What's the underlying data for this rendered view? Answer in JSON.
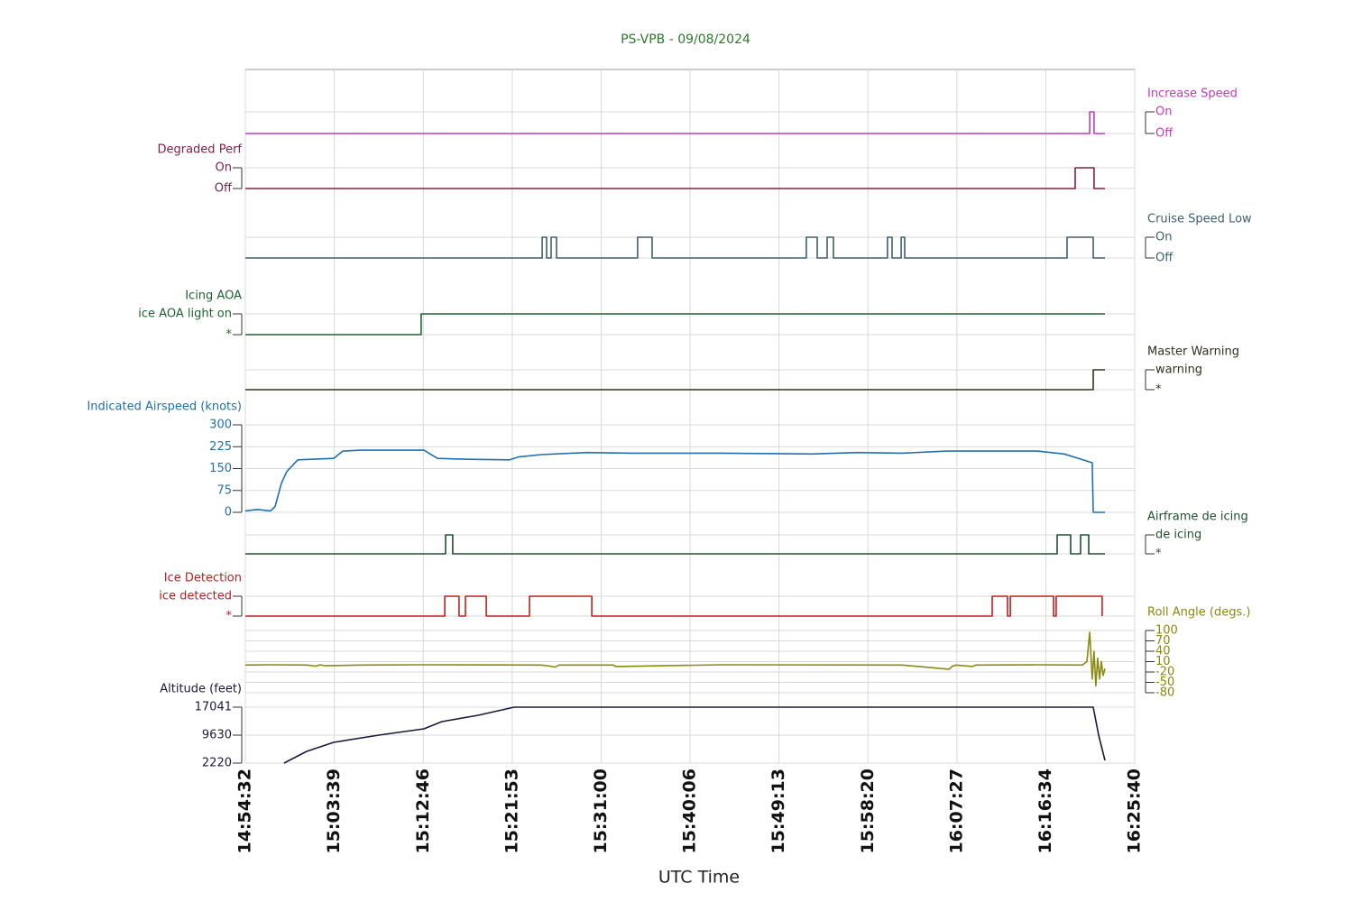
{
  "chart_data": {
    "type": "line",
    "title": "PS-VPB - 09/08/2024",
    "xlabel": "UTC Time",
    "xlim": [
      53672,
      59140
    ],
    "xticks": [
      {
        "value": 53672,
        "label": "14:54:32"
      },
      {
        "value": 54219,
        "label": "15:03:39"
      },
      {
        "value": 54766,
        "label": "15:12:46"
      },
      {
        "value": 55313,
        "label": "15:21:53"
      },
      {
        "value": 55860,
        "label": "15:31:00"
      },
      {
        "value": 56406,
        "label": "15:40:06"
      },
      {
        "value": 56953,
        "label": "15:49:13"
      },
      {
        "value": 57500,
        "label": "15:58:20"
      },
      {
        "value": 58047,
        "label": "16:07:27"
      },
      {
        "value": 58594,
        "label": "16:16:34"
      },
      {
        "value": 59140,
        "label": "16:25:40"
      }
    ],
    "grid": true,
    "series": [
      {
        "name": "Increase Speed",
        "color": "#c03cc0",
        "axis_side": "right",
        "ylim": [
          0,
          1
        ],
        "yticks": [
          {
            "value": 0,
            "label": "Off"
          },
          {
            "value": 1,
            "label": "On"
          }
        ],
        "x": [
          53672,
          58863,
          58863,
          58890,
          58890,
          58957
        ],
        "values": [
          0,
          0,
          1,
          1,
          0,
          0
        ]
      },
      {
        "name": "Degraded Perf",
        "color": "#802040",
        "axis_side": "left",
        "ylim": [
          0,
          1
        ],
        "yticks": [
          {
            "value": 0,
            "label": "Off"
          },
          {
            "value": 1,
            "label": "On"
          }
        ],
        "x": [
          53672,
          58774,
          58774,
          58890,
          58890,
          58957
        ],
        "values": [
          0,
          0,
          1,
          1,
          0,
          0
        ]
      },
      {
        "name": "Cruise Speed Low",
        "color": "#3e5f6e",
        "axis_side": "right",
        "ylim": [
          0,
          1
        ],
        "yticks": [
          {
            "value": 0,
            "label": "Off"
          },
          {
            "value": 1,
            "label": "On"
          }
        ],
        "x": [
          53672,
          55497,
          55497,
          55524,
          55524,
          55552,
          55552,
          55585,
          55585,
          56084,
          56084,
          56173,
          56173,
          57121,
          57121,
          57188,
          57188,
          57249,
          57249,
          57288,
          57288,
          57620,
          57620,
          57648,
          57648,
          57704,
          57704,
          57726,
          57726,
          58724,
          58724,
          58885,
          58885,
          58957
        ],
        "values": [
          0,
          0,
          1,
          1,
          0,
          0,
          1,
          1,
          0,
          0,
          1,
          1,
          0,
          0,
          1,
          1,
          0,
          0,
          1,
          1,
          0,
          0,
          1,
          1,
          0,
          0,
          1,
          1,
          0,
          0,
          1,
          1,
          0,
          0
        ]
      },
      {
        "name": "Icing AOA",
        "color": "#206030",
        "axis_side": "left",
        "ylim": [
          0,
          1
        ],
        "yticks": [
          {
            "value": 0,
            "label": "*"
          },
          {
            "value": 1,
            "label": "ice AOA light on"
          }
        ],
        "x": [
          53672,
          54753,
          54753,
          58957
        ],
        "values": [
          0,
          0,
          1,
          1
        ]
      },
      {
        "name": "Master Warning",
        "color": "#303020",
        "axis_side": "right",
        "ylim": [
          0,
          1
        ],
        "yticks": [
          {
            "value": 0,
            "label": "*"
          },
          {
            "value": 1,
            "label": "warning"
          }
        ],
        "x": [
          53672,
          58885,
          58885,
          58957
        ],
        "values": [
          0,
          0,
          1,
          1
        ]
      },
      {
        "name": "Indicated Airspeed (knots)",
        "color": "#2070b0",
        "axis_side": "left",
        "ylim": [
          0,
          300
        ],
        "yticks": [
          0,
          75,
          150,
          225,
          300
        ],
        "x": [
          53672,
          53744,
          53827,
          53855,
          53894,
          53927,
          53994,
          54215,
          54271,
          54382,
          54770,
          54853,
          55047,
          55297,
          55352,
          55491,
          55768,
          56045,
          56600,
          57155,
          57432,
          57709,
          57986,
          58264,
          58541,
          58707,
          58879,
          58885,
          58957
        ],
        "values": [
          5,
          10,
          5,
          20,
          100,
          140,
          180,
          185,
          210,
          213,
          213,
          185,
          182,
          180,
          190,
          198,
          205,
          203,
          203,
          200,
          205,
          203,
          210,
          210,
          210,
          200,
          170,
          0,
          0
        ]
      },
      {
        "name": "Airframe de icing",
        "color": "#205030",
        "axis_side": "right",
        "ylim": [
          0,
          1
        ],
        "yticks": [
          {
            "value": 0,
            "label": "*"
          },
          {
            "value": 1,
            "label": "de icing"
          }
        ],
        "x": [
          53672,
          54903,
          54903,
          54947,
          54947,
          58663,
          58663,
          58746,
          58746,
          58807,
          58807,
          58857,
          58857,
          58957
        ],
        "values": [
          0,
          0,
          1,
          1,
          0,
          0,
          1,
          1,
          0,
          0,
          1,
          1,
          0,
          0
        ]
      },
      {
        "name": "Ice Detection",
        "color": "#c02020",
        "axis_side": "left",
        "ylim": [
          0,
          1
        ],
        "yticks": [
          {
            "value": 0,
            "label": "*"
          },
          {
            "value": 1,
            "label": "ice detected"
          }
        ],
        "x": [
          53672,
          54898,
          54898,
          54986,
          54986,
          55025,
          55025,
          55153,
          55153,
          55419,
          55419,
          55802,
          55802,
          58264,
          58264,
          58358,
          58358,
          58375,
          58375,
          58641,
          58641,
          58657,
          58657,
          58940,
          58940
        ],
        "values": [
          0,
          0,
          1,
          1,
          0,
          0,
          1,
          1,
          0,
          0,
          1,
          1,
          0,
          0,
          1,
          1,
          0,
          0,
          1,
          1,
          0,
          0,
          1,
          1,
          0
        ]
      },
      {
        "name": "Roll Angle (degs.)",
        "color": "#8a8a10",
        "axis_side": "right",
        "ylim": [
          -80,
          100
        ],
        "yticks": [
          100,
          70,
          40,
          10,
          -20,
          -50,
          -80
        ],
        "x": [
          53672,
          53827,
          54049,
          54105,
          54132,
          54160,
          54382,
          54770,
          55491,
          55546,
          55574,
          55602,
          55935,
          55951,
          56600,
          57709,
          57998,
          58020,
          58042,
          58142,
          58164,
          58541,
          58818,
          58846,
          58863,
          58879,
          58890,
          58901,
          58912,
          58924,
          58935,
          58946,
          58957
        ],
        "values": [
          0,
          1,
          0,
          -3,
          1,
          -2,
          0,
          1,
          0,
          -3,
          -6,
          0,
          0,
          -4,
          1,
          0,
          -12,
          -3,
          0,
          -4,
          0,
          1,
          0,
          10,
          95,
          -40,
          40,
          -60,
          20,
          -40,
          10,
          -30,
          -10
        ]
      },
      {
        "name": "Altitude (feet)",
        "color": "#1a1a40",
        "axis_side": "left",
        "ylim": [
          2220,
          17041
        ],
        "yticks": [
          2220,
          9630,
          17041
        ],
        "x": [
          53910,
          54049,
          54215,
          54493,
          54770,
          54881,
          55103,
          55325,
          58885,
          58918,
          58957
        ],
        "values": [
          2220,
          5327,
          7718,
          9630,
          11302,
          13214,
          14887,
          17041,
          17041,
          9630,
          2937
        ]
      }
    ]
  }
}
